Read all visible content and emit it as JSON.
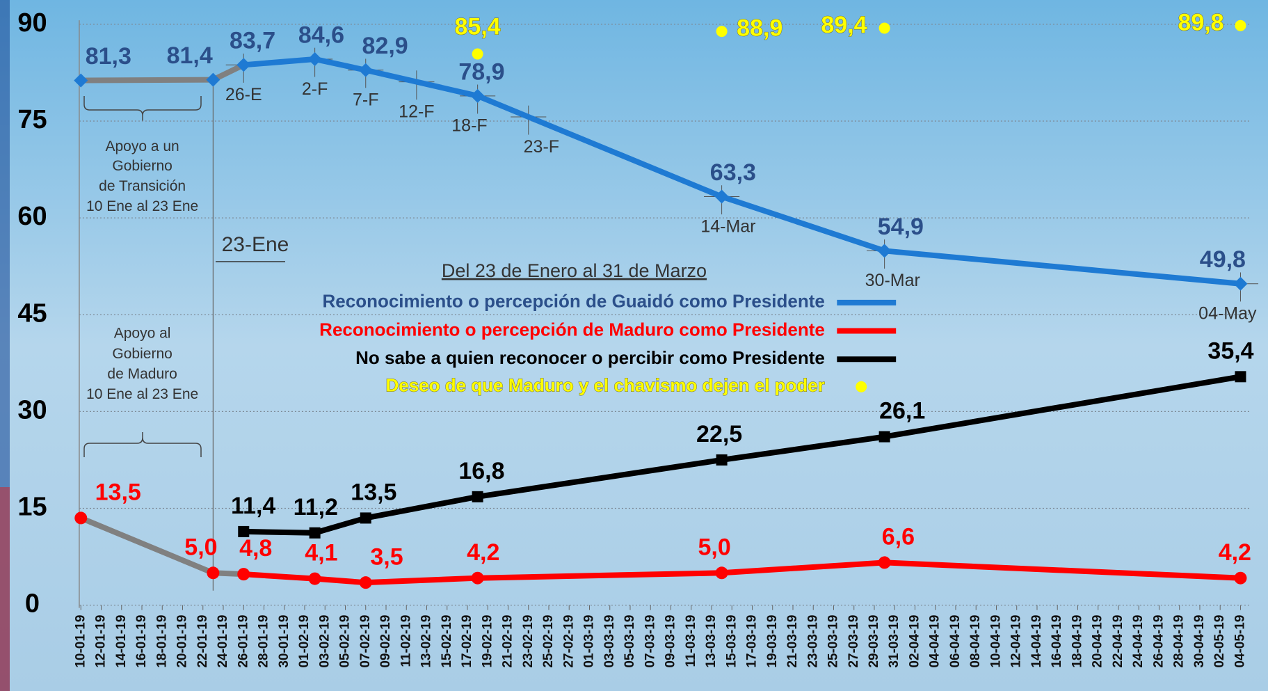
{
  "chart_data": {
    "type": "line",
    "x": [
      "10-01-19",
      "23-01-19",
      "26-01-19",
      "02-02-19",
      "07-02-19",
      "18-02-19",
      "14-03-19",
      "30-03-19",
      "04-05-19"
    ],
    "xlim": [
      "10-01-19",
      "04-05-19"
    ],
    "xticks": [
      "10-01-19",
      "12-01-19",
      "14-01-19",
      "16-01-19",
      "18-01-19",
      "20-01-19",
      "22-01-19",
      "24-01-19",
      "26-01-19",
      "28-01-19",
      "30-01-19",
      "01-02-19",
      "03-02-19",
      "05-02-19",
      "07-02-19",
      "09-02-19",
      "11-02-19",
      "13-02-19",
      "15-02-19",
      "17-02-19",
      "19-02-19",
      "21-02-19",
      "23-02-19",
      "25-02-19",
      "27-02-19",
      "01-03-19",
      "03-03-19",
      "05-03-19",
      "07-03-19",
      "09-03-19",
      "11-03-19",
      "13-03-19",
      "15-03-19",
      "17-03-19",
      "19-03-19",
      "21-03-19",
      "23-03-19",
      "25-03-19",
      "27-03-19",
      "29-03-19",
      "31-03-19",
      "02-04-19",
      "04-04-19",
      "06-04-19",
      "08-04-19",
      "10-04-19",
      "12-04-19",
      "14-04-19",
      "16-04-19",
      "18-04-19",
      "20-04-19",
      "22-04-19",
      "24-04-19",
      "26-04-19",
      "28-04-19",
      "30-04-19",
      "02-05-19",
      "04-05-19"
    ],
    "ylim": [
      0,
      90
    ],
    "yticks": [
      0,
      15,
      30,
      45,
      60,
      75,
      90
    ],
    "grid": true,
    "legend_title": "Del 23 de Enero al 31 de Marzo",
    "pre_color": "#808080",
    "series": [
      {
        "name": "Reconocimiento o percepción de Guaidó como Presidente",
        "color": "#1e7ad3",
        "label_color": "#2b4f8a",
        "marker": "diamond",
        "values": [
          81.3,
          81.4,
          83.7,
          84.6,
          82.9,
          78.9,
          63.3,
          54.9,
          49.8
        ],
        "value_labels": [
          "81,3",
          "81,4",
          "83,7",
          "84,6",
          "82,9",
          "78,9",
          "63,3",
          "54,9",
          "49,8"
        ]
      },
      {
        "name": "Reconocimiento o percepción de Maduro como Presidente",
        "color": "#ff0000",
        "marker": "circle",
        "values": [
          13.5,
          5,
          4.8,
          4.1,
          3.5,
          4.2,
          5,
          6.6,
          4.2
        ],
        "value_labels": [
          "13,5",
          "5,0",
          "4,8",
          "4,1",
          "3,5",
          "4,2",
          "5,0",
          "6,6",
          "4,2"
        ]
      },
      {
        "name": "No sabe a quien reconocer o percibir como Presidente",
        "color": "#000000",
        "marker": "square",
        "values": [
          null,
          null,
          11.4,
          11.2,
          13.5,
          16.8,
          22.5,
          26.1,
          35.4
        ],
        "value_labels": [
          null,
          null,
          "11,4",
          "11,2",
          "13,5",
          "16,8",
          "22,5",
          "26,1",
          "35,4"
        ]
      },
      {
        "name": "Deseo de que Maduro y el chavismo dejen el poder",
        "color": "#ffff00",
        "marker": "dot",
        "line": false,
        "values": [
          null,
          null,
          null,
          null,
          null,
          85.4,
          88.9,
          89.4,
          89.8
        ],
        "value_labels": [
          null,
          null,
          null,
          null,
          null,
          "85,4",
          "88,9",
          "89,4",
          "89,8"
        ]
      }
    ],
    "date_marks": [
      {
        "x": "26-01-19",
        "label": "26-E"
      },
      {
        "x": "02-02-19",
        "label": "2-F"
      },
      {
        "x": "07-02-19",
        "label": "7-F"
      },
      {
        "x": "12-02-19",
        "label": "12-F"
      },
      {
        "x": "18-02-19",
        "label": "18-F"
      },
      {
        "x": "23-02-19",
        "label": "23-F"
      },
      {
        "x": "14-03-19",
        "label": "14-Mar"
      },
      {
        "x": "30-03-19",
        "label": "30-Mar"
      },
      {
        "x": "04-05-19",
        "label": "04-May"
      }
    ],
    "divider_label": "23-Ene",
    "annotations": [
      {
        "lines": [
          "Apoyo a un",
          "Gobierno",
          "de Transición",
          "10 Ene al 23 Ene"
        ]
      },
      {
        "lines": [
          "Apoyo al",
          "Gobierno",
          "de Maduro",
          "10 Ene al 23 Ene"
        ]
      }
    ]
  }
}
